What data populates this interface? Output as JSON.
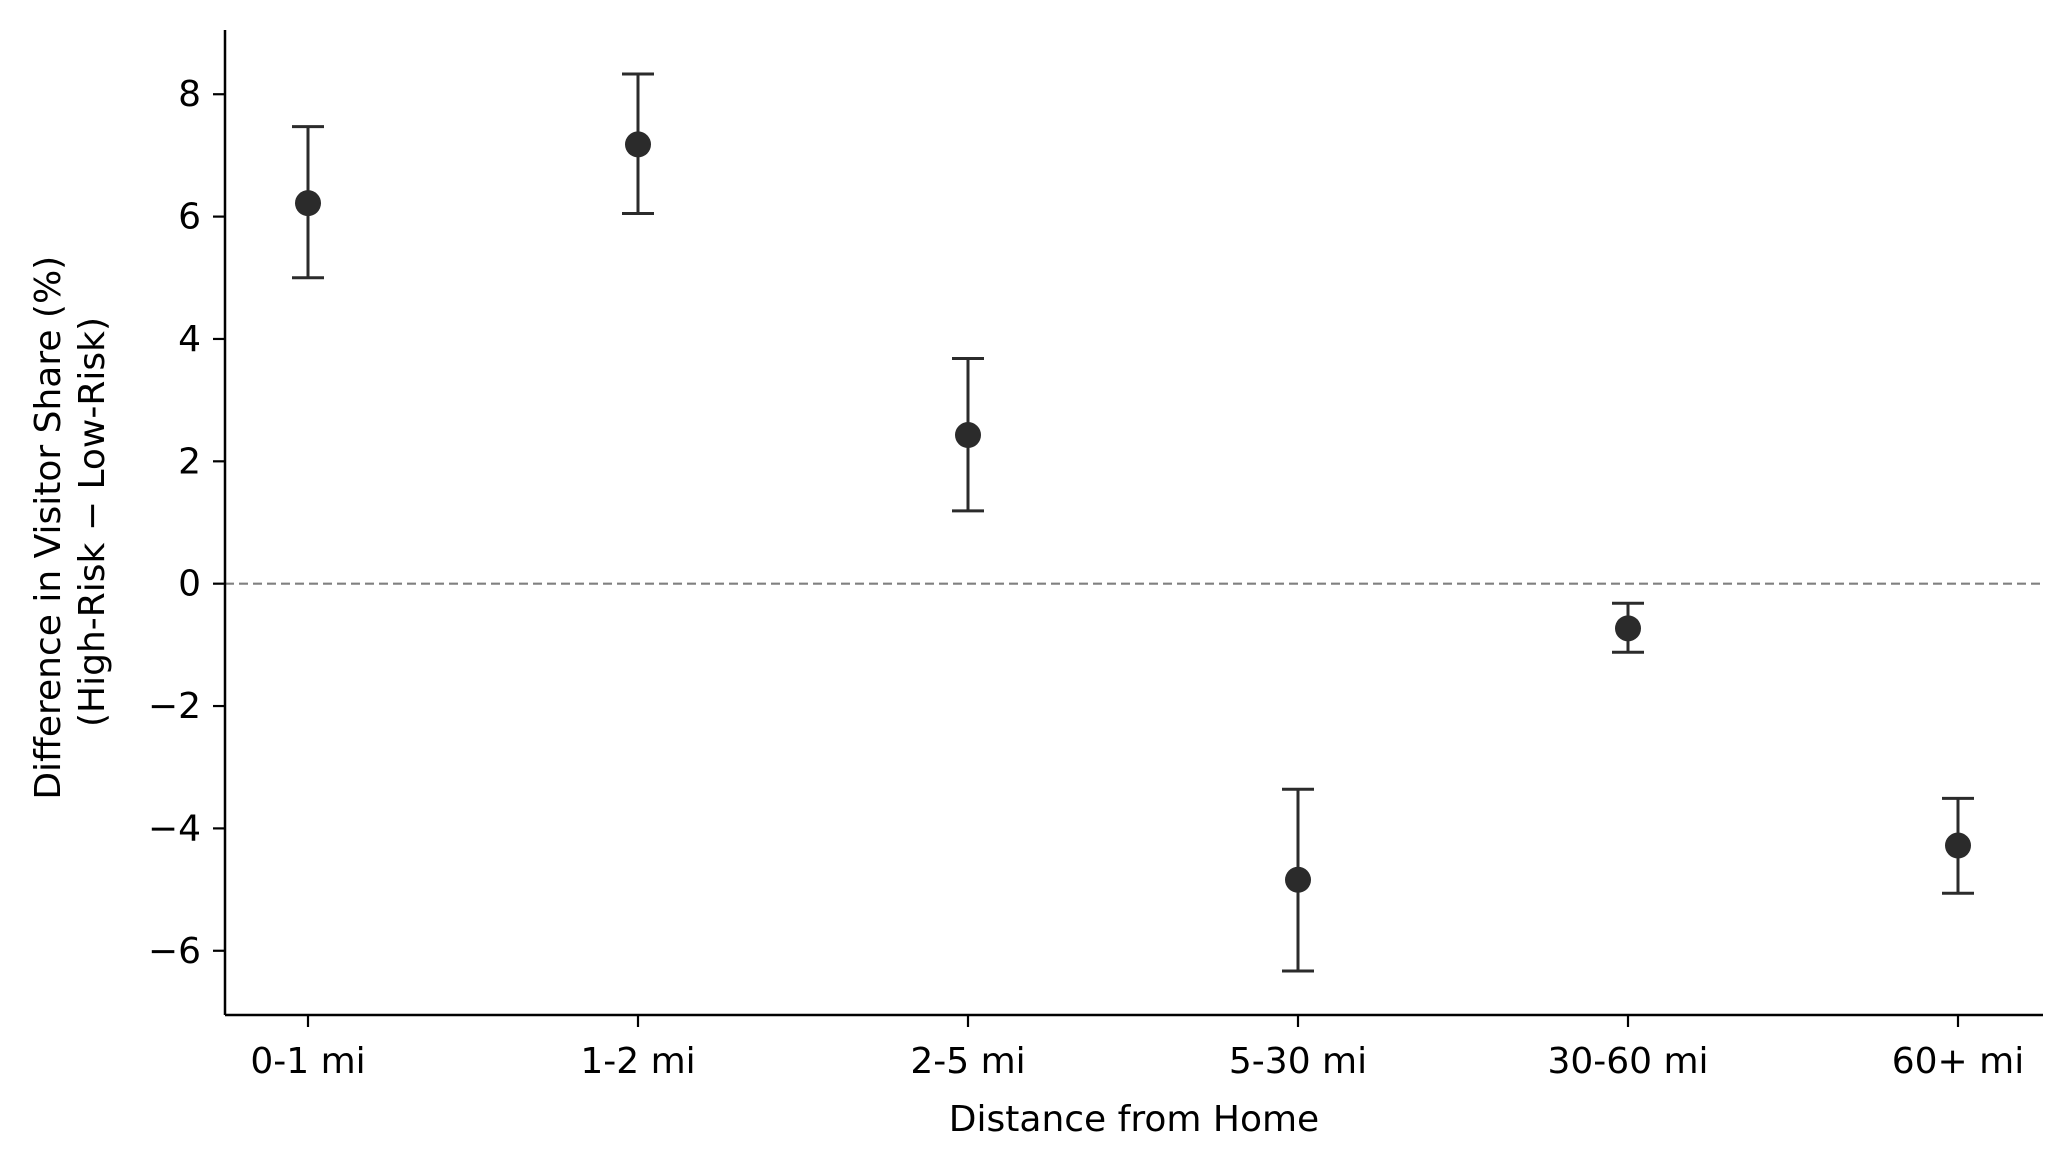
{
  "chart_data": {
    "type": "scatter",
    "title": "",
    "xlabel": "Distance from Home",
    "ylabel": [
      "Difference in Visitor Share (%)",
      "(High-Risk − Low-Risk)"
    ],
    "categories": [
      "0-1 mi",
      "1-2 mi",
      "2-5 mi",
      "5-30 mi",
      "30-60 mi",
      "60+ mi"
    ],
    "values": [
      6.22,
      7.18,
      2.43,
      -4.84,
      -0.73,
      -4.28
    ],
    "error_lower": [
      5.0,
      6.05,
      1.19,
      -6.33,
      -1.12,
      -5.06
    ],
    "error_upper": [
      7.47,
      8.33,
      3.68,
      -3.36,
      -0.32,
      -3.51
    ],
    "ylim": [
      -7.05,
      9.05
    ],
    "yticks": [
      8,
      6,
      4,
      2,
      0,
      -2,
      -4,
      -6
    ],
    "ytick_labels": [
      "8",
      "6",
      "4",
      "2",
      "0",
      "−2",
      "−4",
      "−6"
    ],
    "reference_line": 0,
    "grid": false,
    "legend": "none",
    "colors": {
      "marker": "#2b2b2b",
      "errorbar": "#2b2b2b",
      "reference_line": "#808080",
      "axis": "#000000"
    }
  }
}
